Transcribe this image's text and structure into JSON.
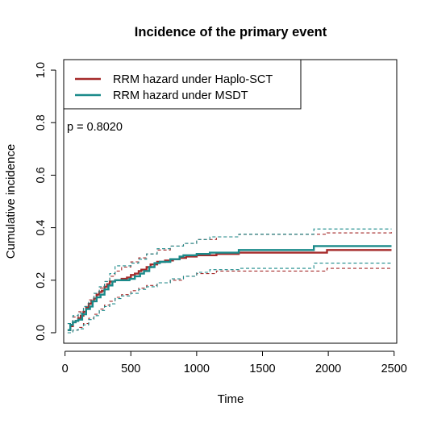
{
  "chart_data": {
    "type": "line",
    "title": "Incidence of the primary event",
    "xlabel": "Time",
    "ylabel": "Cumulative incidence",
    "xlim": [
      -10,
      2520
    ],
    "ylim": [
      -0.04,
      1.04
    ],
    "xticks": [
      0,
      500,
      1000,
      1500,
      2000,
      2500
    ],
    "xtick_labels": [
      "0",
      "500",
      "1000",
      "1500",
      "2000",
      "2500"
    ],
    "yticks": [
      0.0,
      0.2,
      0.4,
      0.6,
      0.8,
      1.0
    ],
    "ytick_labels": [
      "0.0",
      "0.2",
      "0.4",
      "0.6",
      "0.8",
      "1.0"
    ],
    "grid": false,
    "legend_position": "top-left",
    "annotation": "p = 0.8020",
    "series": [
      {
        "name": "RRM hazard under Haplo-SCT",
        "color": "#a52a2a",
        "style": "solid",
        "x": [
          20,
          40,
          60,
          80,
          100,
          120,
          140,
          160,
          180,
          200,
          220,
          240,
          260,
          280,
          300,
          320,
          340,
          380,
          430,
          470,
          500,
          530,
          560,
          580,
          620,
          650,
          700,
          760,
          820,
          870,
          920,
          1000,
          1150,
          1320,
          1600,
          1990,
          2480
        ],
        "y": [
          0.01,
          0.025,
          0.04,
          0.045,
          0.055,
          0.065,
          0.08,
          0.095,
          0.11,
          0.12,
          0.13,
          0.145,
          0.155,
          0.16,
          0.175,
          0.185,
          0.195,
          0.2,
          0.205,
          0.21,
          0.22,
          0.225,
          0.235,
          0.24,
          0.25,
          0.26,
          0.27,
          0.275,
          0.28,
          0.285,
          0.29,
          0.295,
          0.3,
          0.305,
          0.305,
          0.315,
          0.315
        ]
      },
      {
        "name": "Haplo-SCT upper bound",
        "color": "#a52a2a",
        "style": "dashed",
        "x": [
          20,
          60,
          100,
          140,
          180,
          220,
          260,
          300,
          340,
          380,
          430,
          500,
          560,
          620,
          700,
          800,
          900,
          1000,
          1150,
          1320,
          1990,
          2480
        ],
        "y": [
          0.035,
          0.06,
          0.08,
          0.1,
          0.125,
          0.15,
          0.17,
          0.195,
          0.215,
          0.235,
          0.25,
          0.27,
          0.285,
          0.3,
          0.315,
          0.33,
          0.34,
          0.355,
          0.365,
          0.375,
          0.38,
          0.385
        ]
      },
      {
        "name": "Haplo-SCT lower bound",
        "color": "#a52a2a",
        "style": "dashed",
        "x": [
          20,
          60,
          100,
          140,
          180,
          220,
          260,
          300,
          340,
          380,
          430,
          500,
          560,
          620,
          700,
          800,
          900,
          1000,
          1150,
          1320,
          1990,
          2480
        ],
        "y": [
          0.0,
          0.01,
          0.02,
          0.035,
          0.055,
          0.07,
          0.09,
          0.105,
          0.12,
          0.135,
          0.145,
          0.16,
          0.17,
          0.18,
          0.19,
          0.2,
          0.215,
          0.225,
          0.235,
          0.235,
          0.245,
          0.245
        ]
      },
      {
        "name": "RRM hazard under MSDT",
        "color": "#1a8a8a",
        "style": "solid",
        "x": [
          20,
          40,
          60,
          80,
          100,
          130,
          160,
          190,
          210,
          240,
          270,
          300,
          330,
          360,
          380,
          420,
          460,
          490,
          530,
          570,
          600,
          640,
          680,
          720,
          800,
          870,
          900,
          1000,
          1100,
          1320,
          1600,
          1890,
          2480
        ],
        "y": [
          0.01,
          0.03,
          0.04,
          0.045,
          0.05,
          0.07,
          0.09,
          0.1,
          0.12,
          0.135,
          0.145,
          0.165,
          0.18,
          0.195,
          0.2,
          0.2,
          0.2,
          0.205,
          0.215,
          0.225,
          0.235,
          0.25,
          0.265,
          0.27,
          0.28,
          0.29,
          0.295,
          0.3,
          0.305,
          0.315,
          0.315,
          0.33,
          0.33
        ]
      },
      {
        "name": "MSDT upper bound",
        "color": "#1a8a8a",
        "style": "dashed",
        "x": [
          20,
          60,
          100,
          140,
          180,
          220,
          260,
          300,
          340,
          380,
          430,
          500,
          560,
          620,
          700,
          800,
          900,
          1000,
          1100,
          1320,
          1890,
          2480
        ],
        "y": [
          0.035,
          0.065,
          0.075,
          0.1,
          0.12,
          0.15,
          0.175,
          0.195,
          0.225,
          0.255,
          0.255,
          0.265,
          0.28,
          0.3,
          0.32,
          0.33,
          0.34,
          0.355,
          0.365,
          0.375,
          0.395,
          0.395
        ]
      },
      {
        "name": "MSDT lower bound",
        "color": "#1a8a8a",
        "style": "dashed",
        "x": [
          20,
          60,
          100,
          140,
          180,
          220,
          260,
          300,
          340,
          380,
          430,
          500,
          560,
          620,
          700,
          800,
          900,
          1000,
          1100,
          1320,
          1890,
          2480
        ],
        "y": [
          0.0,
          0.01,
          0.015,
          0.03,
          0.05,
          0.065,
          0.085,
          0.1,
          0.11,
          0.13,
          0.14,
          0.15,
          0.165,
          0.175,
          0.19,
          0.205,
          0.215,
          0.23,
          0.24,
          0.245,
          0.265,
          0.265
        ]
      }
    ]
  }
}
